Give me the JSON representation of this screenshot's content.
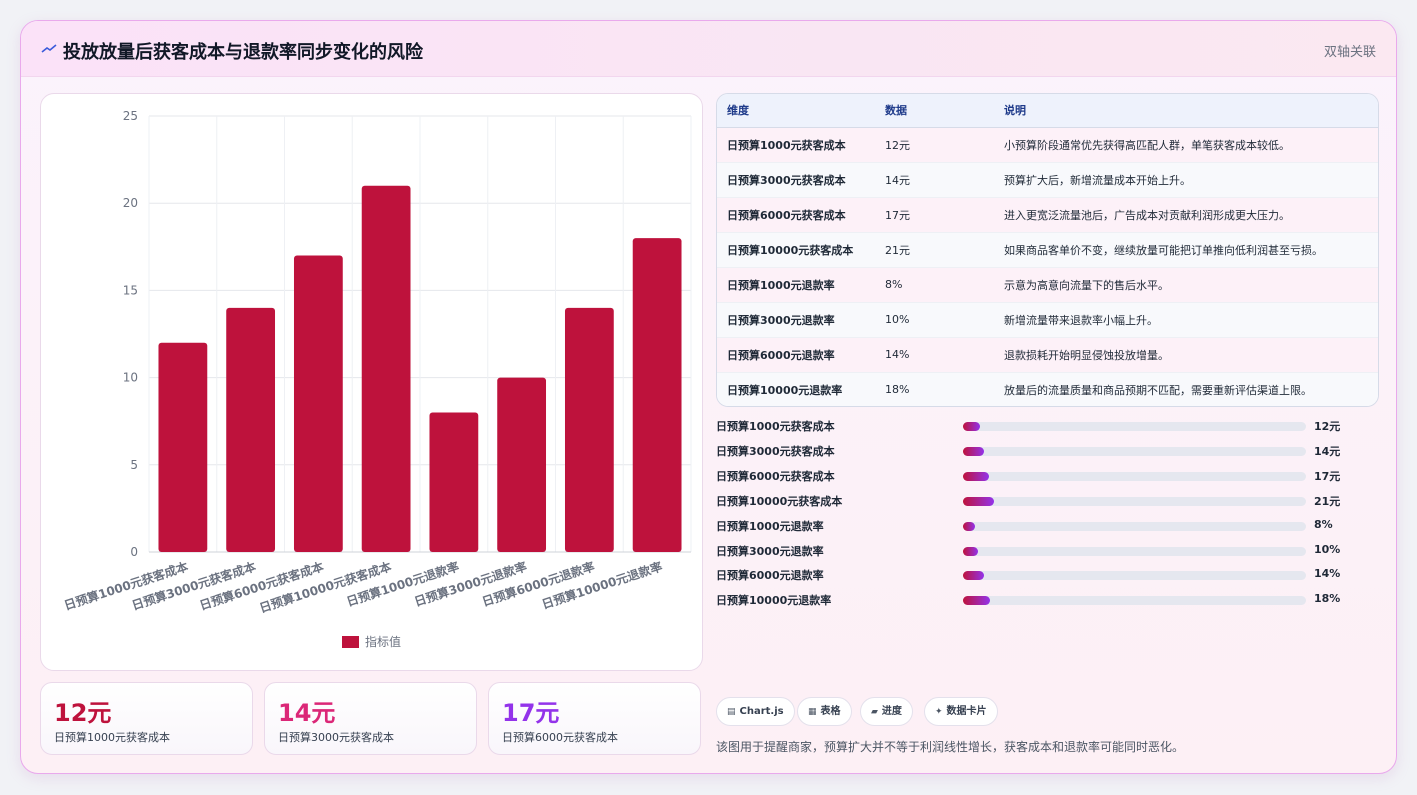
{
  "header": {
    "title": "投放放量后获客成本与退款率同步变化的风险",
    "tag": "双轴关联",
    "icon": "trend-line-icon"
  },
  "colors": {
    "bar": "#be123c",
    "accent_pink": "#db2777",
    "accent_purple": "#9333ea"
  },
  "chart_data": {
    "type": "bar",
    "categories": [
      "日预算1000元获客成本",
      "日预算3000元获客成本",
      "日预算6000元获客成本",
      "日预算10000元获客成本",
      "日预算1000元退款率",
      "日预算3000元退款率",
      "日预算6000元退款率",
      "日预算10000元退款率"
    ],
    "series": [
      {
        "name": "指标值",
        "values": [
          12,
          14,
          17,
          21,
          8,
          10,
          14,
          18
        ]
      }
    ],
    "y_ticks": [
      "0",
      "5",
      "10",
      "15",
      "20",
      "25"
    ],
    "ylim": [
      0,
      25
    ],
    "grid": true,
    "legend": "bottom"
  },
  "kpis": [
    {
      "value": "12元",
      "label": "日预算1000元获客成本",
      "color": "#be123c"
    },
    {
      "value": "14元",
      "label": "日预算3000元获客成本",
      "color": "#db2777"
    },
    {
      "value": "17元",
      "label": "日预算6000元获客成本",
      "color": "#9333ea"
    }
  ],
  "table": {
    "headers": [
      "维度",
      "数据",
      "说明"
    ],
    "rows": [
      {
        "name": "日预算1000元获客成本",
        "value": "12元",
        "note": "小预算阶段通常优先获得高匹配人群，单笔获客成本较低。"
      },
      {
        "name": "日预算3000元获客成本",
        "value": "14元",
        "note": "预算扩大后，新增流量成本开始上升。"
      },
      {
        "name": "日预算6000元获客成本",
        "value": "17元",
        "note": "进入更宽泛流量池后，广告成本对贡献利润形成更大压力。"
      },
      {
        "name": "日预算10000元获客成本",
        "value": "21元",
        "note": "如果商品客单价不变，继续放量可能把订单推向低利润甚至亏损。"
      },
      {
        "name": "日预算1000元退款率",
        "value": "8%",
        "note": "示意为高意向流量下的售后水平。"
      },
      {
        "name": "日预算3000元退款率",
        "value": "10%",
        "note": "新增流量带来退款率小幅上升。"
      },
      {
        "name": "日预算6000元退款率",
        "value": "14%",
        "note": "退款损耗开始明显侵蚀投放增量。"
      },
      {
        "name": "日预算10000元退款率",
        "value": "18%",
        "note": "放量后的流量质量和商品预期不匹配，需要重新评估渠道上限。"
      }
    ]
  },
  "progress": [
    {
      "label": "日预算1000元获客成本",
      "value": "12元",
      "fraction": 0.05
    },
    {
      "label": "日预算3000元获客成本",
      "value": "14元",
      "fraction": 0.06
    },
    {
      "label": "日预算6000元获客成本",
      "value": "17元",
      "fraction": 0.075
    },
    {
      "label": "日预算10000元获客成本",
      "value": "21元",
      "fraction": 0.09
    },
    {
      "label": "日预算1000元退款率",
      "value": "8%",
      "fraction": 0.035
    },
    {
      "label": "日预算3000元退款率",
      "value": "10%",
      "fraction": 0.043
    },
    {
      "label": "日预算6000元退款率",
      "value": "14%",
      "fraction": 0.06
    },
    {
      "label": "日预算10000元退款率",
      "value": "18%",
      "fraction": 0.078
    }
  ],
  "chips": [
    {
      "icon": "chart-icon",
      "glyph": "▤",
      "label": "Chart.js"
    },
    {
      "icon": "table-icon",
      "glyph": "▦",
      "label": "表格"
    },
    {
      "icon": "progress-icon",
      "glyph": "▰",
      "label": "进度"
    },
    {
      "icon": "card-icon",
      "glyph": "✦",
      "label": "数据卡片"
    }
  ],
  "footnote": "该图用于提醒商家，预算扩大并不等于利润线性增长，获客成本和退款率可能同时恶化。"
}
